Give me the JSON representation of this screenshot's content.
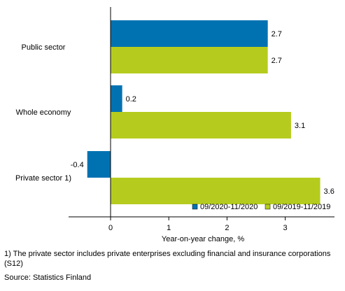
{
  "chart_data": {
    "type": "bar",
    "orientation": "horizontal",
    "categories": [
      "Public sector",
      "Whole economy",
      "Private sector 1)"
    ],
    "series": [
      {
        "name": "09/2020-11/2020",
        "color": "#0072b2",
        "values": [
          2.7,
          0.2,
          -0.4
        ]
      },
      {
        "name": "09/2019-11/2019",
        "color": "#b5cc1e",
        "values": [
          2.7,
          3.1,
          3.6
        ]
      }
    ],
    "value_labels": [
      [
        "2.7",
        "0.2",
        "-0.4"
      ],
      [
        "2.7",
        "3.1",
        "3.6"
      ]
    ],
    "xlabel": "Year-on-year change, %",
    "xlim": [
      -0.8,
      3.9
    ],
    "xticks": [
      0,
      1,
      2,
      3
    ],
    "grid": false,
    "legend_position": "bottom-right"
  },
  "footnote": "1) The private sector includes private enterprises excluding financial and insurance corporations (S12)",
  "source": "Source: Statistics Finland"
}
